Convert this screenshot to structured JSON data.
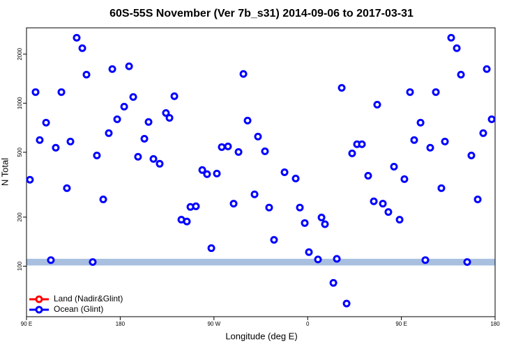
{
  "chart_data": {
    "type": "scatter",
    "title": "60S-55S November (Ver 7b_s31)   2014-09-06 to 2017-03-31",
    "xlabel": "Longitude (deg E)",
    "ylabel": "N Total",
    "xlim": [
      90,
      540
    ],
    "xticks": [
      {
        "value": 90,
        "label": "90 E"
      },
      {
        "value": 180,
        "label": "180"
      },
      {
        "value": 270,
        "label": "90 W"
      },
      {
        "value": 360,
        "label": "0"
      },
      {
        "value": 450,
        "label": "90 E"
      },
      {
        "value": 540,
        "label": "180"
      }
    ],
    "ylim": [
      49,
      2900
    ],
    "yticks": [
      100,
      200,
      500,
      1000,
      2000
    ],
    "log_y": true,
    "band": [
      101,
      111
    ],
    "band_color": "#a8bfe0",
    "legend": "bottom-left",
    "series": [
      {
        "name": "Land (Nadir&Glint)",
        "color": "#ff0000",
        "x": [],
        "values": []
      },
      {
        "name": "Ocean (Glint)",
        "color": "#0000ff",
        "x": [
          93.3,
          98.7,
          102.7,
          108.8,
          113.4,
          118.1,
          123.5,
          128.8,
          132.2,
          138.2,
          143.6,
          147.6,
          153.6,
          157.6,
          163.7,
          169.0,
          172.4,
          177.1,
          183.8,
          188.5,
          192.5,
          197.1,
          203.2,
          207.2,
          211.9,
          217.9,
          223.9,
          227.3,
          232.0,
          238.7,
          244.0,
          247.4,
          252.7,
          258.8,
          263.4,
          267.5,
          272.8,
          277.5,
          283.5,
          288.9,
          293.6,
          298.3,
          302.3,
          309.0,
          312.3,
          319.0,
          323.0,
          327.7,
          337.8,
          348.5,
          352.5,
          357.2,
          361.2,
          369.9,
          373.3,
          376.6,
          384.7,
          388.0,
          392.7,
          397.4,
          402.7,
          407.4,
          412.1,
          418.1,
          423.5,
          426.8,
          432.2,
          437.5,
          442.9,
          448.3,
          452.9,
          458.3,
          462.3,
          468.4,
          473.0,
          477.7,
          483.1,
          488.4,
          491.8,
          497.8,
          503.2,
          507.2,
          513.2,
          517.2,
          523.3,
          528.6,
          532.0,
          536.7
        ],
        "values": [
          339,
          1170,
          594,
          760,
          109,
          533,
          1170,
          301,
          582,
          2522,
          2176,
          1497,
          106,
          478,
          257,
          655,
          1620,
          797,
          952,
          1684,
          1092,
          469,
          605,
          767,
          455,
          425,
          871,
          813,
          1104,
          193,
          188,
          231,
          233,
          389,
          367,
          129,
          370,
          538,
          543,
          242,
          502,
          1512,
          782,
          276,
          624,
          507,
          229,
          145,
          377,
          345,
          229,
          184,
          122,
          110,
          199,
          181,
          79,
          111,
          1242,
          59,
          492,
          560,
          560,
          359,
          250,
          980,
          242,
          215,
          408,
          193,
          342,
          1170,
          594,
          760,
          109,
          533,
          1170,
          301,
          582,
          2522,
          2176,
          1497,
          106,
          478,
          257,
          655,
          1620,
          797
        ]
      }
    ]
  }
}
